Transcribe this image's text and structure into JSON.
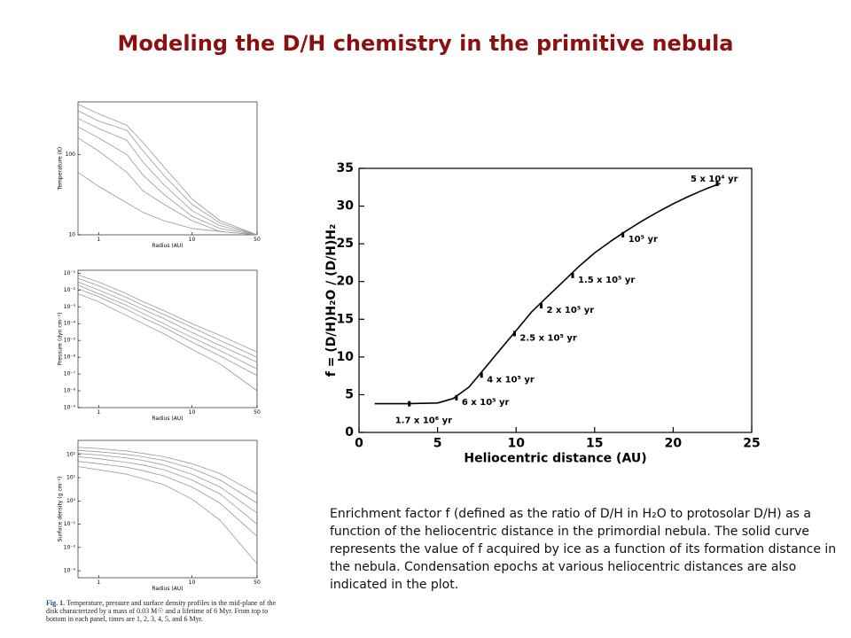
{
  "title": "Modeling the D/H chemistry in the primitive nebula",
  "caption": "Enrichment factor f (defined as the ratio of D/H in H₂O to protosolar D/H) as a function of the heliocentric distance in the primordial nebula. The solid curve represents the value of f acquired by ice as a function of its formation distance in the nebula. Condensation epochs at various heliocentric distances are also indicated in the plot.",
  "figure_caption": {
    "label": "Fig. 1.",
    "text": "Temperature, pressure and surface density profiles in the mid-plane of the disk characterized by a mass of 0.03 M☉ and a lifetime of 6 Myr. From top to bottom in each panel, times are 1, 2, 3, 4, 5, and 6 Myr."
  },
  "chart_data": [
    {
      "type": "line",
      "xlabel": "Radius (AU)",
      "ylabel": "Temperature (K)",
      "xlog": true,
      "ylog": true,
      "xlim": [
        0.6,
        50
      ],
      "xticks": [
        1,
        10,
        50
      ],
      "ylim": [
        10,
        450
      ],
      "yticks": [
        10,
        100
      ],
      "x": [
        0.6,
        1,
        2,
        3,
        5,
        10,
        20,
        50
      ],
      "series": [
        {
          "color": "#999999",
          "values": [
            420,
            320,
            230,
            140,
            70,
            28,
            15,
            10
          ]
        },
        {
          "color": "#999999",
          "values": [
            350,
            260,
            200,
            110,
            55,
            24,
            14,
            10
          ]
        },
        {
          "color": "#999999",
          "values": [
            280,
            210,
            150,
            80,
            42,
            20,
            13,
            10
          ]
        },
        {
          "color": "#999999",
          "values": [
            220,
            160,
            100,
            55,
            32,
            17,
            12,
            10
          ]
        },
        {
          "color": "#999999",
          "values": [
            160,
            110,
            60,
            35,
            24,
            15,
            11,
            10
          ]
        },
        {
          "color": "#999999",
          "values": [
            60,
            40,
            25,
            19,
            15,
            12,
            11,
            10
          ]
        }
      ]
    },
    {
      "type": "line",
      "xlabel": "Radius (AU)",
      "ylabel": "Pressure (dyn cm⁻²)",
      "xlog": true,
      "ylog": true,
      "xlim": [
        0.6,
        50
      ],
      "xticks": [
        1,
        10,
        50
      ],
      "ylim": [
        1e-09,
        0.15
      ],
      "yticks": [
        {
          "value": 0.1,
          "label": "10⁻¹"
        },
        {
          "value": 0.01,
          "label": "10⁻²"
        },
        {
          "value": 0.001,
          "label": "10⁻³"
        },
        {
          "value": 0.0001,
          "label": "10⁻⁴"
        },
        {
          "value": 1e-05,
          "label": "10⁻⁵"
        },
        {
          "value": 1e-06,
          "label": "10⁻⁶"
        },
        {
          "value": 1e-07,
          "label": "10⁻⁷"
        },
        {
          "value": 1e-08,
          "label": "10⁻⁸"
        },
        {
          "value": 1e-09,
          "label": "10⁻⁹"
        }
      ],
      "x": [
        0.6,
        1,
        2,
        3,
        5,
        10,
        20,
        50
      ],
      "series": [
        {
          "color": "#999999",
          "values": [
            0.08,
            0.03,
            0.006,
            0.002,
            0.0006,
            0.0001,
            2e-05,
            2e-06
          ]
        },
        {
          "color": "#999999",
          "values": [
            0.05,
            0.018,
            0.0035,
            0.0012,
            0.00035,
            6e-05,
            1e-05,
            1e-06
          ]
        },
        {
          "color": "#999999",
          "values": [
            0.03,
            0.01,
            0.002,
            0.0007,
            0.0002,
            3e-05,
            5e-06,
            5e-07
          ]
        },
        {
          "color": "#999999",
          "values": [
            0.02,
            0.006,
            0.0012,
            0.0004,
            0.0001,
            1.5e-05,
            2.5e-06,
            2e-07
          ]
        },
        {
          "color": "#999999",
          "values": [
            0.012,
            0.004,
            0.0007,
            0.00022,
            6e-05,
            8e-06,
            1.2e-06,
            8e-08
          ]
        },
        {
          "color": "#999999",
          "values": [
            0.006,
            0.002,
            0.0003,
            0.0001,
            2.5e-05,
            3e-06,
            4e-07,
            1e-08
          ]
        }
      ]
    },
    {
      "type": "line",
      "xlabel": "Radius (AU)",
      "ylabel": "Surface density (g cm⁻²)",
      "xlog": true,
      "ylog": true,
      "xlim": [
        0.6,
        50
      ],
      "xticks": [
        1,
        10,
        50
      ],
      "ylim": [
        0.0005,
        400
      ],
      "yticks": [
        {
          "value": 100,
          "label": "10²"
        },
        {
          "value": 10,
          "label": "10¹"
        },
        {
          "value": 1,
          "label": "10⁰"
        },
        {
          "value": 0.1,
          "label": "10⁻¹"
        },
        {
          "value": 0.01,
          "label": "10⁻²"
        },
        {
          "value": 0.001,
          "label": "10⁻³"
        }
      ],
      "x": [
        0.6,
        1,
        2,
        3,
        5,
        10,
        20,
        50
      ],
      "series": [
        {
          "color": "#999999",
          "values": [
            200,
            180,
            140,
            110,
            80,
            40,
            15,
            2
          ]
        },
        {
          "color": "#999999",
          "values": [
            150,
            130,
            100,
            80,
            55,
            25,
            8,
            0.8
          ]
        },
        {
          "color": "#999999",
          "values": [
            110,
            95,
            70,
            55,
            35,
            14,
            4,
            0.3
          ]
        },
        {
          "color": "#999999",
          "values": [
            80,
            65,
            45,
            35,
            22,
            8,
            2,
            0.1
          ]
        },
        {
          "color": "#999999",
          "values": [
            50,
            40,
            28,
            20,
            12,
            4,
            0.8,
            0.03
          ]
        },
        {
          "color": "#999999",
          "values": [
            30,
            22,
            14,
            9,
            5,
            1.2,
            0.15,
            0.002
          ]
        }
      ]
    },
    {
      "type": "line",
      "xlabel": "Heliocentric distance (AU)",
      "ylabel": "f = (D/H)H₂O / (D/H)H₂",
      "xlog": false,
      "ylog": false,
      "xlim": [
        0,
        25
      ],
      "xticks": [
        0,
        5,
        10,
        15,
        20,
        25
      ],
      "ylim": [
        0,
        35
      ],
      "yticks": [
        0,
        5,
        10,
        15,
        20,
        25,
        30,
        35
      ],
      "x": [
        1,
        3,
        5,
        6,
        7,
        8,
        9,
        10,
        11,
        12,
        13,
        14,
        15,
        16,
        17,
        18,
        19,
        20,
        21,
        22,
        23
      ],
      "series": [
        {
          "color": "#000000",
          "values": [
            3.8,
            3.8,
            3.9,
            4.5,
            6,
            8.5,
            11,
            13.5,
            16,
            18,
            20,
            22,
            23.8,
            25.3,
            26.7,
            28,
            29.2,
            30.3,
            31.3,
            32.2,
            33
          ]
        }
      ],
      "markers": {
        "x": [
          3.2,
          6.2,
          7.8,
          9.9,
          11.6,
          13.6,
          16.8,
          22.8
        ],
        "values": [
          3.8,
          4.6,
          7.6,
          13.1,
          16.8,
          20.8,
          26.2,
          33
        ],
        "labels": [
          "1.7 x 10⁶ yr",
          "6 x 10⁵ yr",
          "4 x 10⁵ yr",
          "2.5 x 10⁵ yr",
          "2 x 10⁵ yr",
          "1.5 x 10⁵ yr",
          "10⁵ yr",
          "5 x 10⁴ yr"
        ]
      }
    }
  ]
}
